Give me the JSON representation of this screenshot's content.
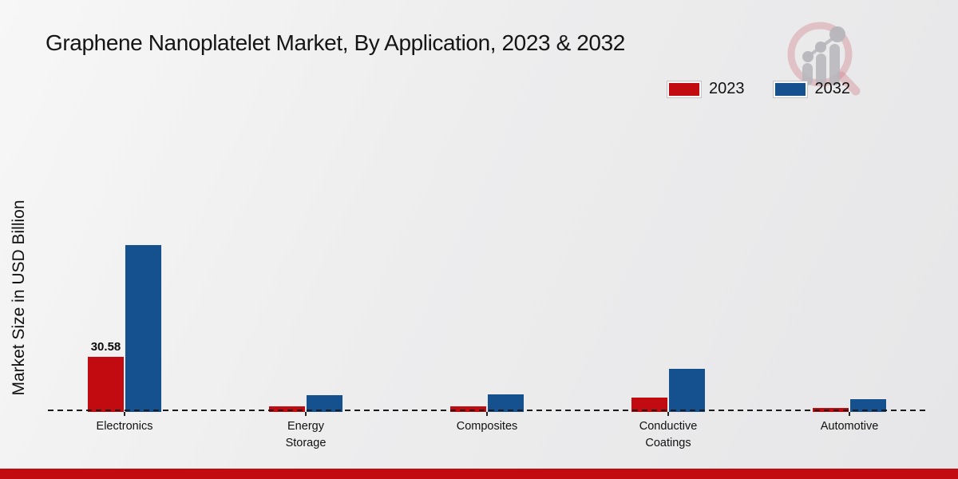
{
  "title": "Graphene Nanoplatelet Market, By Application, 2023 & 2032",
  "ylabel": "Market Size in USD Billion",
  "legend": [
    {
      "label": "2023",
      "color": "#c20b10"
    },
    {
      "label": "2032",
      "color": "#15508f"
    }
  ],
  "colors": {
    "accent_red": "#c20b10",
    "accent_blue": "#15508f",
    "footer_bar": "#c20b10",
    "background": "#ebebec"
  },
  "logo": {
    "name": "magnifier-bar-chart-watermark"
  },
  "chart_data": {
    "type": "bar",
    "title": "Graphene Nanoplatelet Market, By Application, 2023 & 2032",
    "xlabel": "",
    "ylabel": "Market Size in USD Billion",
    "categories": [
      "Electronics",
      "Energy Storage",
      "Composites",
      "Conductive Coatings",
      "Automotive"
    ],
    "series": [
      {
        "name": "2023",
        "color": "#c20b10",
        "values": [
          30.58,
          3.5,
          3.5,
          8.1,
          2.6
        ]
      },
      {
        "name": "2032",
        "color": "#15508f",
        "values": [
          91.8,
          9.8,
          10.2,
          24.2,
          7.6
        ]
      }
    ],
    "annotations": [
      {
        "category_index": 0,
        "series": "2023",
        "text": "30.58"
      }
    ],
    "axis_style": "dashed-baseline-only",
    "grid": false,
    "legend_position": "top-right",
    "note": "only the 30.58 data label is printed on the chart; other values estimated from bar heights"
  }
}
